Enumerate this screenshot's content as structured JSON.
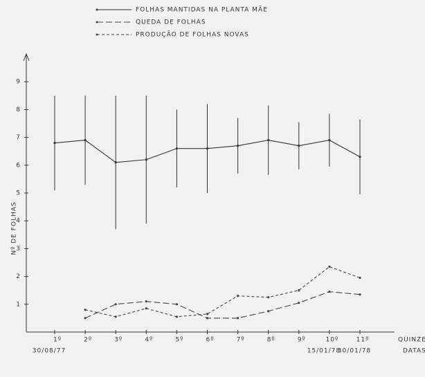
{
  "chart_data": {
    "type": "line",
    "y_label": "Nº DE FOLHAS",
    "x_label": "QUINZENAS",
    "date_label": "DATAS",
    "categories": [
      "1º",
      "2º",
      "3º",
      "4º",
      "5º",
      "6º",
      "7º",
      "8º",
      "9º",
      "10º",
      "11º"
    ],
    "dates": [
      "30/08/77",
      null,
      null,
      null,
      null,
      null,
      null,
      null,
      null,
      "15/01/78",
      "30/01/78"
    ],
    "series": [
      {
        "name": "FOLHAS MANTIDAS NA PLANTA MÃE",
        "color": "#333333",
        "dash": "solid",
        "values": [
          6.8,
          6.9,
          6.1,
          6.2,
          6.6,
          6.6,
          6.7,
          6.9,
          6.7,
          6.9,
          6.3
        ],
        "errors": [
          1.7,
          1.6,
          2.4,
          2.3,
          1.4,
          1.6,
          1.0,
          1.25,
          0.85,
          0.95,
          1.35
        ]
      },
      {
        "name": "QUEDA DE FOLHAS",
        "color": "#444444",
        "dash": "long",
        "values": [
          null,
          0.5,
          1.0,
          1.1,
          1.0,
          0.5,
          0.5,
          0.75,
          1.05,
          1.45,
          1.35
        ]
      },
      {
        "name": "PRODUÇÃO DE FOLHAS NOVAS",
        "color": "#444444",
        "dash": "short",
        "values": [
          null,
          0.8,
          0.55,
          0.85,
          0.55,
          0.65,
          1.3,
          1.25,
          1.5,
          2.35,
          1.95
        ]
      }
    ],
    "ylim": [
      0,
      10
    ],
    "yticks": [
      1,
      2,
      3,
      4,
      5,
      6,
      7,
      8,
      9
    ]
  }
}
